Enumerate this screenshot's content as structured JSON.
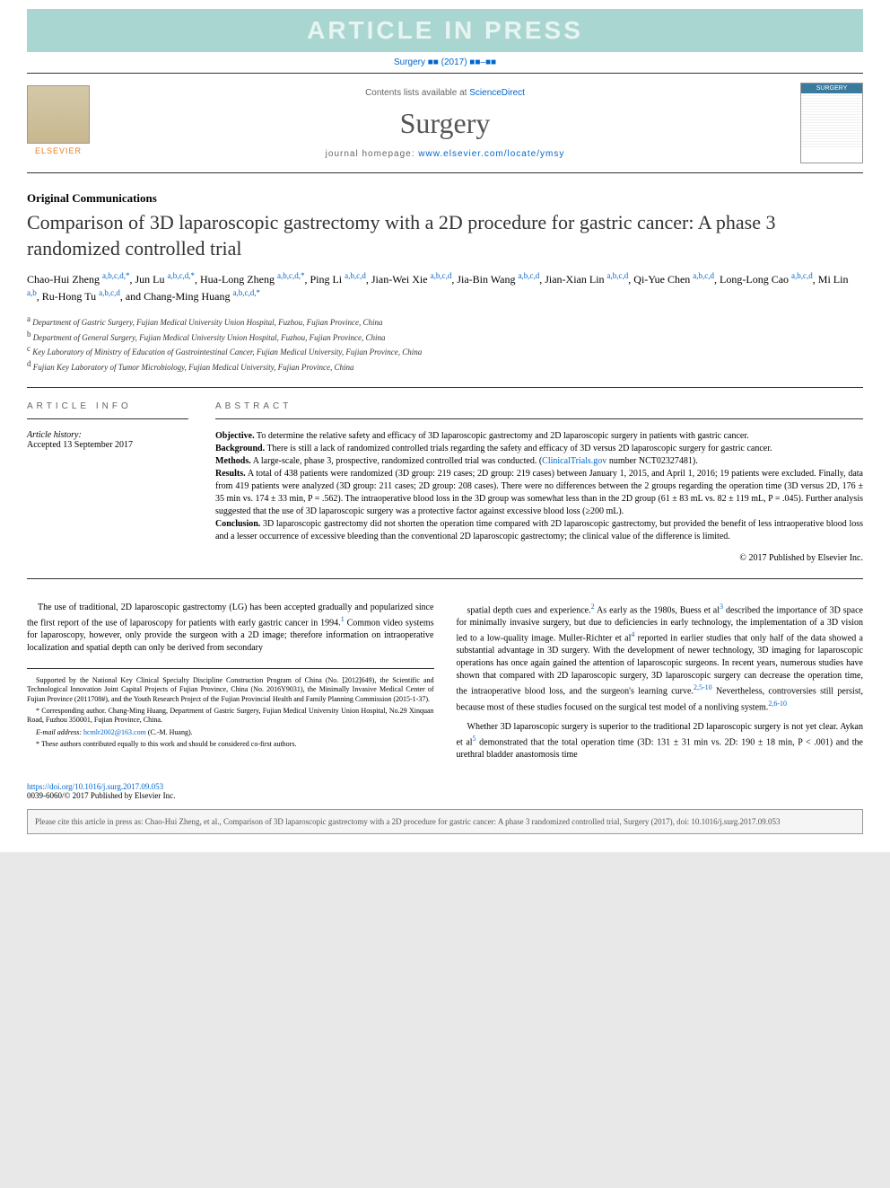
{
  "banner": "ARTICLE IN PRESS",
  "citation_line": "Surgery ■■ (2017) ■■–■■",
  "header": {
    "publisher": "ELSEVIER",
    "contents_prefix": "Contents lists available at ",
    "contents_link": "ScienceDirect",
    "journal": "Surgery",
    "homepage_prefix": "journal homepage: ",
    "homepage_url": "www.elsevier.com/locate/ymsy",
    "cover_label": "SURGERY"
  },
  "section": "Original Communications",
  "title": "Comparison of 3D laparoscopic gastrectomy with a 2D procedure for gastric cancer: A phase 3 randomized controlled trial",
  "authors_html": "Chao-Hui Zheng <span class='sup'>a,b,c,d,*</span>, Jun Lu <span class='sup'>a,b,c,d,*</span>, Hua-Long Zheng <span class='sup'>a,b,c,d,*</span>, Ping Li <span class='sup'>a,b,c,d</span>, Jian-Wei Xie <span class='sup'>a,b,c,d</span>, Jia-Bin Wang <span class='sup'>a,b,c,d</span>, Jian-Xian Lin <span class='sup'>a,b,c,d</span>, Qi-Yue Chen <span class='sup'>a,b,c,d</span>, Long-Long Cao <span class='sup'>a,b,c,d</span>, Mi Lin <span class='sup'>a,b</span>, Ru-Hong Tu <span class='sup'>a,b,c,d</span>, and Chang-Ming Huang <span class='sup'>a,b,c,d,*</span>",
  "affiliations": {
    "a": "Department of Gastric Surgery, Fujian Medical University Union Hospital, Fuzhou, Fujian Province, China",
    "b": "Department of General Surgery, Fujian Medical University Union Hospital, Fuzhou, Fujian Province, China",
    "c": "Key Laboratory of Ministry of Education of Gastrointestinal Cancer, Fujian Medical University, Fujian Province, China",
    "d": "Fujian Key Laboratory of Tumor Microbiology, Fujian Medical University, Fujian Province, China"
  },
  "info": {
    "header": "ARTICLE INFO",
    "history_label": "Article history:",
    "accepted": "Accepted 13 September 2017"
  },
  "abstract": {
    "header": "ABSTRACT",
    "objective_label": "Objective.",
    "objective": "To determine the relative safety and efficacy of 3D laparoscopic gastrectomy and 2D laparoscopic surgery in patients with gastric cancer.",
    "background_label": "Background.",
    "background": "There is still a lack of randomized controlled trials regarding the safety and efficacy of 3D versus 2D laparoscopic surgery for gastric cancer.",
    "methods_label": "Methods.",
    "methods_text": "A large-scale, phase 3, prospective, randomized controlled trial was conducted. (",
    "methods_link": "ClinicalTrials.gov",
    "methods_suffix": " number NCT02327481).",
    "results_label": "Results.",
    "results": "A total of 438 patients were randomized (3D group: 219 cases; 2D group: 219 cases) between January 1, 2015, and April 1, 2016; 19 patients were excluded. Finally, data from 419 patients were analyzed (3D group: 211 cases; 2D group: 208 cases). There were no differences between the 2 groups regarding the operation time (3D versus 2D, 176 ± 35 min vs. 174 ± 33 min, P = .562). The intraoperative blood loss in the 3D group was somewhat less than in the 2D group (61 ± 83 mL vs. 82 ± 119 mL, P = .045). Further analysis suggested that the use of 3D laparoscopic surgery was a protective factor against excessive blood loss (≥200 mL).",
    "conclusion_label": "Conclusion.",
    "conclusion": "3D laparoscopic gastrectomy did not shorten the operation time compared with 2D laparoscopic gastrectomy, but provided the benefit of less intraoperative blood loss and a lesser occurrence of excessive bleeding than the conventional 2D laparoscopic gastrectomy; the clinical value of the difference is limited.",
    "copyright": "© 2017 Published by Elsevier Inc."
  },
  "body": {
    "col1_p1_a": "The use of traditional, 2D laparoscopic gastrectomy (LG) has been accepted gradually and popularized since the first report of the use of laparoscopy for patients with early gastric cancer in 1994.",
    "col1_p1_b": " Common video systems for laparoscopy, however, only provide the surgeon with a 2D image; therefore information on intraoperative localization and spatial depth can only be derived from secondary",
    "col2_p1_a": "spatial depth cues and experience.",
    "col2_p1_b": " As early as the 1980s, Buess et al",
    "col2_p1_c": " described the importance of 3D space for minimally invasive surgery, but due to deficiencies in early technology, the implementation of a 3D vision led to a low-quality image. Muller-Richter et al",
    "col2_p1_d": " reported in earlier studies that only half of the data showed a substantial advantage in 3D surgery. With the development of newer technology, 3D imaging for laparoscopic operations has once again gained the attention of laparoscopic surgeons. In recent years, numerous studies have shown that compared with 2D laparoscopic surgery, 3D laparoscopic surgery can decrease the operation time, the intraoperative blood loss, and the surgeon's learning curve.",
    "col2_p1_e": " Nevertheless, controversies still persist, because most of these studies focused on the surgical test model of a nonliving system.",
    "col2_p2_a": "Whether 3D laparoscopic surgery is superior to the traditional 2D laparoscopic surgery is not yet clear. Aykan et al",
    "col2_p2_b": " demonstrated that the total operation time (3D: 131 ± 31 min vs. 2D: 190 ± 18 min, P < .001) and the urethral bladder anastomosis time",
    "ref1": "1",
    "ref2": "2",
    "ref3": "3",
    "ref4": "4",
    "ref5": "5",
    "ref25_10": "2,5-10",
    "ref26_10": "2,6-10"
  },
  "footnotes": {
    "funding": "Supported by the National Key Clinical Specialty Discipline Construction Program of China (No. [2012]649), the Scientific and Technological Innovation Joint Capital Projects of Fujian Province, China (No. 2016Y9031), the Minimally Invasive Medical Center of Fujian Province (2011708#), and the Youth Research Project of the Fujian Provincial Health and Family Planning Commission (2015-1-37).",
    "corr_label": "* Corresponding author. ",
    "corr": "Chang-Ming Huang, Department of Gastric Surgery, Fujian Medical University Union Hospital, No.29 Xinquan Road, Fuzhou 350001, Fujian Province, China.",
    "email_label": "E-mail address: ",
    "email": "hcmlr2002@163.com",
    "email_suffix": " (C.-M. Huang).",
    "cofirst": "* These authors contributed equally to this work and should be considered co-first authors."
  },
  "doi": {
    "url": "https://doi.org/10.1016/j.surg.2017.09.053",
    "issn_line": "0039-6060/© 2017 Published by Elsevier Inc."
  },
  "bottom_cite": "Please cite this article in press as: Chao-Hui Zheng, et al., Comparison of 3D laparoscopic gastrectomy with a 2D procedure for gastric cancer: A phase 3 randomized controlled trial, Surgery (2017), doi: 10.1016/j.surg.2017.09.053",
  "colors": {
    "banner_bg": "#a9d6d1",
    "banner_fg": "#e8f4f2",
    "link": "#0066cc",
    "elsevier": "#e67e22",
    "cover_header": "#3a7a9c"
  }
}
